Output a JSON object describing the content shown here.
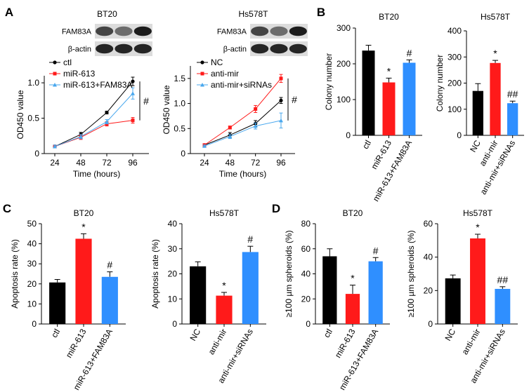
{
  "panels": [
    "A",
    "B",
    "C",
    "D"
  ],
  "colors": {
    "black": "#000000",
    "red": "#ff1a1a",
    "blue": "#2f8fff",
    "lightblue": "#4aa8ee"
  },
  "chart_data": [
    {
      "panel": "A",
      "type": "line",
      "title": "BT20",
      "blot": {
        "rows": [
          "FAM83A",
          "β-actin"
        ],
        "lanes": 3
      },
      "xlabel": "Time (hours)",
      "ylabel": "OD450 value",
      "x": [
        24,
        48,
        72,
        96
      ],
      "xlim": [
        24,
        96
      ],
      "ylim": [
        0,
        1.1
      ],
      "yticks": [
        0,
        0.5,
        1.0
      ],
      "ytick_labels": [
        "0",
        "0.5",
        "1.0"
      ],
      "series": [
        {
          "name": "ctl",
          "color": "#000000",
          "marker": "circle",
          "values": [
            0.1,
            0.27,
            0.58,
            1.02
          ],
          "err": [
            0.02,
            0.03,
            0.02,
            0.06
          ]
        },
        {
          "name": "miR-613",
          "color": "#ff1a1a",
          "marker": "square",
          "values": [
            0.1,
            0.23,
            0.42,
            0.47
          ],
          "err": [
            0.02,
            0.03,
            0.03,
            0.04
          ]
        },
        {
          "name": "miR-613+FAM83A",
          "color": "#4aa8ee",
          "marker": "triangle",
          "values": [
            0.1,
            0.24,
            0.45,
            0.85
          ],
          "err": [
            0.02,
            0.03,
            0.03,
            0.08
          ]
        }
      ],
      "annotation": "#",
      "legend": "top-left"
    },
    {
      "panel": "A",
      "type": "line",
      "title": "Hs578T",
      "blot": {
        "rows": [
          "FAM83A",
          "β-actin"
        ],
        "lanes": 3
      },
      "xlabel": "Time (hours)",
      "ylabel": "OD450 value",
      "x": [
        24,
        48,
        72,
        96
      ],
      "xlim": [
        24,
        96
      ],
      "ylim": [
        0,
        1.75
      ],
      "yticks": [
        0,
        0.5,
        1.0,
        1.5
      ],
      "ytick_labels": [
        "0",
        "0.5",
        "1.0",
        "1.5"
      ],
      "series": [
        {
          "name": "NC",
          "color": "#000000",
          "marker": "circle",
          "values": [
            0.17,
            0.37,
            0.6,
            1.06
          ],
          "err": [
            0.02,
            0.05,
            0.06,
            0.06
          ]
        },
        {
          "name": "anti-mir",
          "color": "#ff1a1a",
          "marker": "square",
          "values": [
            0.17,
            0.52,
            0.89,
            1.5
          ],
          "err": [
            0.02,
            0.03,
            0.07,
            0.08
          ]
        },
        {
          "name": "anti-mir+siRNAs",
          "color": "#4aa8ee",
          "marker": "triangle",
          "values": [
            0.15,
            0.34,
            0.55,
            0.66
          ],
          "err": [
            0.02,
            0.04,
            0.06,
            0.15
          ]
        }
      ],
      "annotation": "#",
      "legend": "top-left"
    },
    {
      "panel": "B",
      "type": "bar",
      "title": "BT20",
      "ylabel": "Colony number",
      "categories": [
        "ctl",
        "miR-613",
        "miR-613+FAM83A"
      ],
      "values": [
        237,
        148,
        203
      ],
      "err": [
        15,
        12,
        8
      ],
      "annotations": [
        "",
        "*",
        "#"
      ],
      "colors": [
        "#000000",
        "#ff1a1a",
        "#2f8fff"
      ],
      "ylim": [
        0,
        300
      ],
      "yticks": [
        0,
        100,
        200,
        300
      ]
    },
    {
      "panel": "B",
      "type": "bar",
      "title": "Hs578T",
      "ylabel": "Colony number",
      "categories": [
        "NC",
        "anti-mir",
        "anti-mir+siRNAs"
      ],
      "values": [
        170,
        277,
        123
      ],
      "err": [
        28,
        10,
        8
      ],
      "annotations": [
        "",
        "*",
        "##"
      ],
      "colors": [
        "#000000",
        "#ff1a1a",
        "#2f8fff"
      ],
      "ylim": [
        0,
        400
      ],
      "yticks": [
        0,
        100,
        200,
        300,
        400
      ]
    },
    {
      "panel": "C",
      "type": "bar",
      "title": "BT20",
      "ylabel": "Apoptosis rate (%)",
      "categories": [
        "ctl",
        "miR-613",
        "miR-613+FAM83A"
      ],
      "values": [
        20.7,
        42.5,
        23.5
      ],
      "err": [
        1.5,
        2.5,
        2.5
      ],
      "annotations": [
        "",
        "*",
        "#"
      ],
      "colors": [
        "#000000",
        "#ff1a1a",
        "#2f8fff"
      ],
      "ylim": [
        0,
        50
      ],
      "yticks": [
        0,
        10,
        20,
        30,
        40,
        50
      ]
    },
    {
      "panel": "C",
      "type": "bar",
      "title": "Hs578T",
      "ylabel": "Apoptosis rate (%)",
      "categories": [
        "NC",
        "anti-mir",
        "anti-mir+siRNAs"
      ],
      "values": [
        23,
        11.3,
        28.7
      ],
      "err": [
        1.8,
        1.3,
        2.3
      ],
      "annotations": [
        "",
        "*",
        "#"
      ],
      "colors": [
        "#000000",
        "#ff1a1a",
        "#2f8fff"
      ],
      "ylim": [
        0,
        40
      ],
      "yticks": [
        0,
        10,
        20,
        30,
        40
      ]
    },
    {
      "panel": "D",
      "type": "bar",
      "title": "BT20",
      "ylabel": "≥100 µm spheroids (%)",
      "categories": [
        "ctl",
        "miR-613",
        "miR-613+FAM83A"
      ],
      "values": [
        54,
        24,
        50
      ],
      "err": [
        6,
        7,
        3
      ],
      "annotations": [
        "",
        "*",
        "#"
      ],
      "colors": [
        "#000000",
        "#ff1a1a",
        "#2f8fff"
      ],
      "ylim": [
        0,
        80
      ],
      "yticks": [
        0,
        20,
        40,
        60,
        80
      ]
    },
    {
      "panel": "D",
      "type": "bar",
      "title": "Hs578T",
      "ylabel": "≥100 µm spheroids (%)",
      "categories": [
        "NC",
        "anti-mir",
        "anti-mir+siRNAs"
      ],
      "values": [
        27.3,
        51.2,
        21
      ],
      "err": [
        2,
        2.5,
        1.3
      ],
      "annotations": [
        "",
        "*",
        "##"
      ],
      "colors": [
        "#000000",
        "#ff1a1a",
        "#2f8fff"
      ],
      "ylim": [
        0,
        60
      ],
      "yticks": [
        0,
        20,
        40,
        60
      ]
    }
  ]
}
